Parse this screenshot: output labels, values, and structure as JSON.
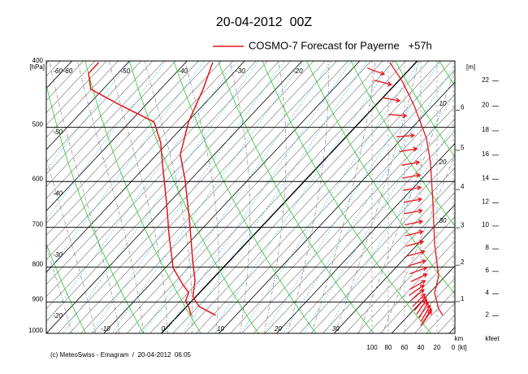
{
  "chart_data": {
    "type": "emagram",
    "title": "20-04-2012  00Z",
    "legend": "COSMO-7 Forecast for Payerne   +57h",
    "color": "#e8141c",
    "footer": "(c) MeteoSwiss - Emagram  /  20-04-2012  06:05",
    "ylabel": "[hPa]",
    "yscale": "log",
    "ylim": [
      1000,
      400
    ],
    "yticks": [
      400,
      500,
      600,
      700,
      800,
      900,
      1000
    ],
    "xlim": [
      -20,
      51
    ],
    "xticks": [
      -10,
      0,
      10,
      20,
      30
    ],
    "isotherm_labels_top": [
      -60,
      -50,
      -40,
      -30,
      -20
    ],
    "isotherm_labels_left": [
      -60,
      -50,
      -40,
      -30,
      -20
    ],
    "temperature": {
      "pressure": [
        941,
        914,
        884,
        837,
        782,
        682,
        595,
        548,
        491,
        440,
        402
      ],
      "values": [
        6.5,
        2.2,
        -0.5,
        -2.8,
        -6.5,
        -13.7,
        -21.1,
        -25.9,
        -29.8,
        -32.6,
        -35.3
      ]
    },
    "dewpoint": {
      "pressure": [
        941,
        916,
        896,
        872,
        849,
        803,
        720,
        646,
        563,
        526,
        491,
        465,
        440,
        417,
        402
      ],
      "values": [
        2.2,
        0.5,
        -1.1,
        -1.9,
        -4.2,
        -8.6,
        -14.6,
        -20.3,
        -27.7,
        -31.3,
        -35.8,
        -44.1,
        -52.1,
        -55.1,
        -55.1
      ]
    },
    "wind": {
      "pressure": [
        941,
        921,
        872,
        826,
        740,
        646,
        563,
        519,
        465,
        428,
        402
      ],
      "speed": [
        13,
        18,
        23,
        18,
        23,
        25,
        28,
        33,
        48,
        63,
        78
      ]
    },
    "wind_arrows": {
      "pressure": [
        414,
        430,
        455,
        480,
        515,
        540,
        565,
        590,
        615,
        640,
        665,
        690,
        715,
        740,
        765,
        790,
        810,
        830,
        850,
        865,
        880,
        895,
        905,
        915,
        925,
        935,
        945,
        950
      ],
      "direction": [
        290,
        285,
        280,
        275,
        265,
        260,
        260,
        260,
        260,
        260,
        260,
        258,
        256,
        255,
        255,
        253,
        250,
        245,
        240,
        235,
        230,
        225,
        220,
        215,
        210,
        210,
        212,
        215
      ]
    },
    "wind_xlim": [
      100,
      0
    ],
    "wind_xticks": [
      100,
      80,
      60,
      40,
      20,
      0
    ],
    "wind_xlabel": "[kt]",
    "wind_panel_labels": [
      10,
      20,
      30
    ],
    "km_label": "km",
    "m_label": "[m]",
    "km_ticks": [
      1,
      2,
      3,
      4,
      5,
      6
    ],
    "kfeet_label": "kfeet",
    "kfeet_ticks": [
      2,
      4,
      6,
      8,
      10,
      12,
      14,
      16,
      18,
      20,
      22
    ]
  }
}
